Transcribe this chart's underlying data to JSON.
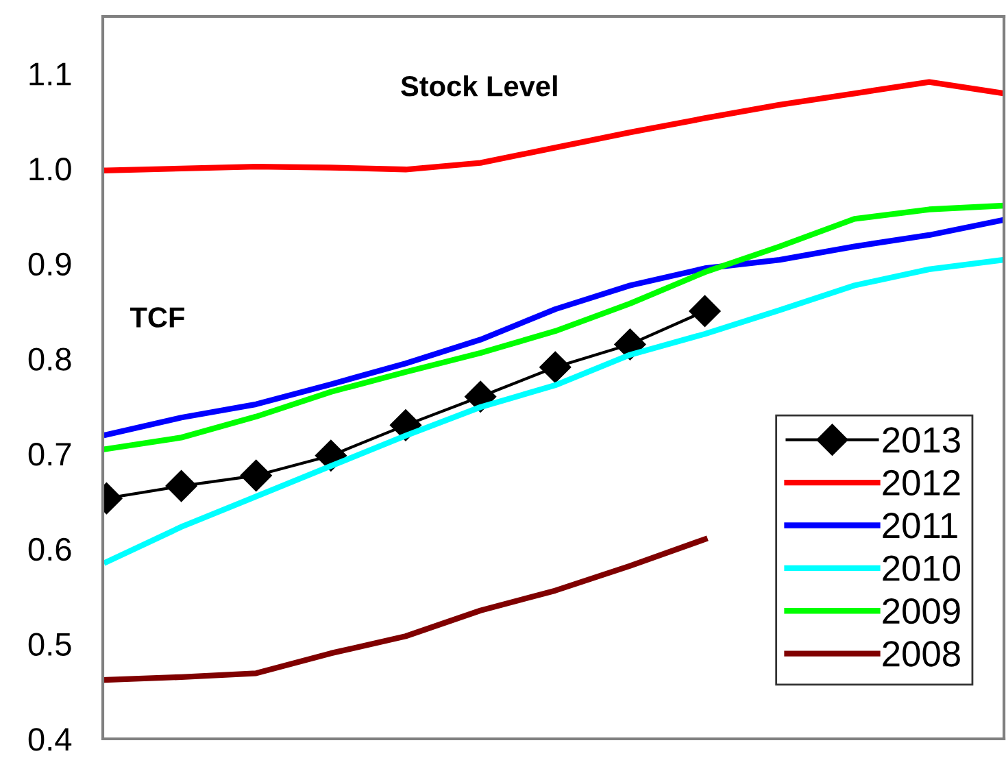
{
  "chart_data": {
    "type": "line",
    "categories": [
      null,
      null,
      null,
      null,
      null,
      null,
      null,
      null,
      null,
      null,
      null,
      null,
      null
    ],
    "series": [
      {
        "name": "2013",
        "color": "#000000",
        "marker": "diamond",
        "values": [
          0.653,
          0.666,
          0.677,
          0.698,
          0.73,
          0.76,
          0.791,
          0.815,
          0.85,
          null,
          null,
          null,
          null
        ]
      },
      {
        "name": "2012",
        "color": "#ff0000",
        "values": [
          0.998,
          1.0,
          1.002,
          1.001,
          0.999,
          1.006,
          1.022,
          1.038,
          1.053,
          1.067,
          1.079,
          1.091,
          1.079
        ]
      },
      {
        "name": "2011",
        "color": "#0000ff",
        "values": [
          0.72,
          0.738,
          0.752,
          0.773,
          0.795,
          0.82,
          0.852,
          0.877,
          0.895,
          0.904,
          0.918,
          0.93,
          0.946
        ]
      },
      {
        "name": "2010",
        "color": "#00ffff",
        "values": [
          0.586,
          0.623,
          0.655,
          0.687,
          0.719,
          0.749,
          0.772,
          0.804,
          0.826,
          0.851,
          0.877,
          0.894,
          0.904
        ]
      },
      {
        "name": "2009",
        "color": "#00ff00",
        "values": [
          0.705,
          0.717,
          0.739,
          0.765,
          0.786,
          0.806,
          0.829,
          0.858,
          0.891,
          0.918,
          0.947,
          0.957,
          0.961
        ]
      },
      {
        "name": "2008",
        "color": "#800000",
        "values": [
          0.462,
          0.465,
          0.469,
          0.49,
          0.508,
          0.535,
          0.556,
          0.582,
          0.61,
          null,
          null,
          null,
          null
        ]
      }
    ],
    "annotations": [
      "Stock Level",
      "TCF"
    ],
    "ylim": [
      0.4,
      1.16
    ],
    "yticks": [
      {
        "value": 0.4,
        "label": "0.4"
      },
      {
        "value": 0.5,
        "label": "0.5"
      },
      {
        "value": 0.6,
        "label": "0.6"
      },
      {
        "value": 0.7,
        "label": "0.7"
      },
      {
        "value": 0.8,
        "label": "0.8"
      },
      {
        "value": 0.9,
        "label": "0.9"
      },
      {
        "value": 1.0,
        "label": "1.0"
      },
      {
        "value": 1.1,
        "label": "1.1"
      }
    ],
    "tick_labels": "y",
    "grid": false,
    "legend": "bottom right"
  }
}
